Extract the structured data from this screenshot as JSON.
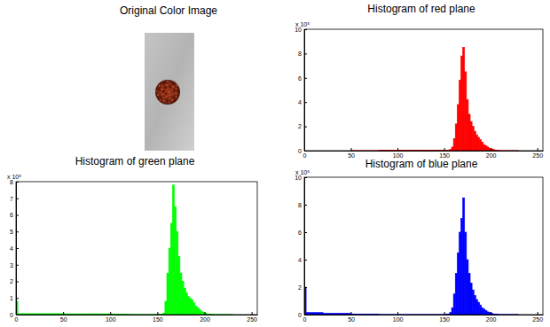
{
  "image_panel": {
    "title": "Original Color Image"
  },
  "chart_data": [
    {
      "type": "histogram",
      "title": "Histogram of red plane",
      "color": "#ff0000",
      "annotation": "x 10⁵",
      "bins": [
        0,
        2,
        20,
        50,
        80,
        100,
        120,
        140,
        150,
        152,
        154,
        156,
        158,
        160,
        162,
        164,
        166,
        168,
        170,
        172,
        174,
        176,
        178,
        180,
        182,
        184,
        186,
        188,
        190,
        192,
        194,
        196,
        198,
        200,
        202,
        204,
        206,
        208,
        210,
        230,
        256
      ],
      "values": [
        0,
        0,
        0,
        0.01,
        0.04,
        0.05,
        0.05,
        0.05,
        0.02,
        0.03,
        0.05,
        0.1,
        0.3,
        1.0,
        2.2,
        3.8,
        5.8,
        7.8,
        8.5,
        6.5,
        4.2,
        3.0,
        2.4,
        2.0,
        1.6,
        1.3,
        1.1,
        0.9,
        0.7,
        0.5,
        0.4,
        0.3,
        0.2,
        0.15,
        0.1,
        0.05,
        0.03,
        0.02,
        0.01,
        0
      ],
      "xlim": [
        0,
        256
      ],
      "xticks": [
        0,
        50,
        100,
        150,
        200,
        250
      ],
      "ylim": [
        0,
        10
      ],
      "yticks": [
        0,
        2,
        4,
        6,
        8,
        10
      ]
    },
    {
      "type": "histogram",
      "title": "Histogram of green plane",
      "color": "#00ff00",
      "annotation": "x 10⁵",
      "bins": [
        0,
        2,
        20,
        50,
        80,
        100,
        120,
        140,
        150,
        152,
        154,
        156,
        158,
        160,
        162,
        164,
        166,
        168,
        170,
        172,
        174,
        176,
        178,
        180,
        182,
        184,
        186,
        188,
        190,
        192,
        194,
        196,
        198,
        200,
        202,
        204,
        206,
        208,
        210,
        230,
        256
      ],
      "values": [
        0.8,
        0.06,
        0.06,
        0.05,
        0.05,
        0.02,
        0.01,
        0.01,
        0.01,
        0.01,
        0.02,
        0.1,
        0.8,
        2.5,
        4.0,
        5.5,
        7.8,
        6.5,
        5.0,
        3.5,
        2.5,
        2.0,
        1.6,
        1.3,
        1.1,
        1.0,
        0.9,
        0.7,
        0.5,
        0.4,
        0.3,
        0.2,
        0.15,
        0.1,
        0.05,
        0.03,
        0.02,
        0.01,
        0.01,
        0
      ],
      "xlim": [
        0,
        256
      ],
      "xticks": [
        0,
        50,
        100,
        150,
        200,
        250
      ],
      "ylim": [
        0,
        8
      ],
      "yticks": [
        0,
        1,
        2,
        3,
        4,
        5,
        6,
        7,
        8
      ]
    },
    {
      "type": "histogram",
      "title": "Histogram of blue plane",
      "color": "#0000ff",
      "annotation": "x 10⁵",
      "bins": [
        0,
        2,
        20,
        50,
        80,
        100,
        120,
        140,
        150,
        152,
        154,
        156,
        158,
        160,
        162,
        164,
        166,
        168,
        170,
        172,
        174,
        176,
        178,
        180,
        182,
        184,
        186,
        188,
        190,
        192,
        194,
        196,
        198,
        200,
        202,
        204,
        206,
        208,
        210,
        230,
        256
      ],
      "values": [
        2.0,
        0.15,
        0.1,
        0.02,
        0.01,
        0.01,
        0.01,
        0.01,
        0.01,
        0.02,
        0.05,
        0.15,
        0.5,
        1.5,
        3.0,
        4.5,
        6.0,
        7.0,
        8.5,
        6.0,
        4.0,
        3.0,
        2.3,
        1.8,
        1.4,
        1.1,
        0.9,
        0.7,
        0.5,
        0.4,
        0.3,
        0.2,
        0.15,
        0.1,
        0.05,
        0.03,
        0.02,
        0.01,
        0.01,
        0
      ],
      "xlim": [
        0,
        256
      ],
      "xticks": [
        0,
        50,
        100,
        150,
        200,
        250
      ],
      "ylim": [
        0,
        10
      ],
      "yticks": [
        0,
        2,
        4,
        6,
        8,
        10
      ]
    }
  ]
}
